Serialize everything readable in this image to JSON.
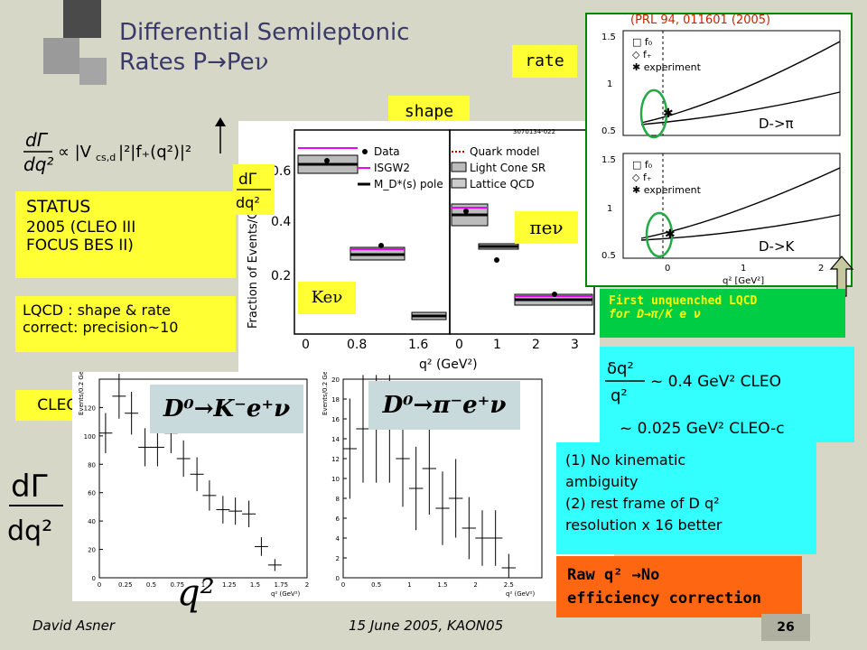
{
  "slide": {
    "title_line1": "Differential Semileptonic",
    "title_line2": "Rates P",
    "title_arrow": "→",
    "title_tail": "Pe",
    "title_nu": "ν",
    "footer_author": "David Asner",
    "footer_date": "15 June 2005, KAON05",
    "page_number": "26"
  },
  "labels": {
    "rate": "rate",
    "shape": "shape",
    "status_title": "STATUS",
    "status_line1": "2005 (CLEO III",
    "status_line2": "FOCUS BES II)",
    "lqcd_line1": "LQCD : shape & rate",
    "lqcd_line2": "correct: precision~10",
    "cleoc": "CLEO-c",
    "pie_nu": "πeν",
    "ke_nu": "Keν",
    "k_channel": "D⁰→K⁻e⁺ν",
    "pi_channel": "D⁰→π⁻e⁺ν",
    "unquenched_line1": "First unquenched LQCD",
    "unquenched_line2": "for D→π/K e ν",
    "prl_ref": "(PRL 94, 011601 (2005)",
    "res_line1": "δq²",
    "res_line1b": "q²",
    "res_val1": "~ 0.4 GeV² CLEO",
    "res_val2": "~ 0.025 GeV²  CLEO-c",
    "adv1_a": "(1) No kinematic",
    "adv1_b": "ambiguity",
    "adv2_a": "(2) rest frame of D q²",
    "adv2_b": "resolution x 16 better",
    "raw_line1": "Raw q² →No",
    "raw_line2": "efficiency correction",
    "formula_rate": "dΓ/dq² ∝ |V_cs,d|² |f₊(q²)|²",
    "dgdq": "dΓ/dq²",
    "q2": "q²"
  },
  "lattice_panel": {
    "legend": [
      "f₀",
      "f₊",
      "experiment"
    ],
    "xlabel": "q² [GeV²]",
    "top_label": "D->π",
    "bottom_label": "D->K",
    "y_ticks_top": [
      "1.5",
      "1",
      "0.5"
    ],
    "y_ticks_bottom": [
      "1.5",
      "1",
      "0.5"
    ],
    "x_ticks": [
      "0",
      "1",
      "2"
    ]
  },
  "shape_panel": {
    "ylabel": "Fraction of Events/GeV²",
    "xlabel": "q² (GeV²)",
    "code": "3070134-022",
    "legend_left": [
      "Data",
      "ISGW2",
      "M_D*(s) pole"
    ],
    "legend_right": [
      "Quark model",
      "Light Cone SR",
      "Lattice QCD"
    ],
    "y_ticks": [
      "0.6",
      "0.4",
      "0.2"
    ],
    "x_ticks_left": [
      "0",
      "0.8",
      "1.6"
    ],
    "x_ticks_right": [
      "0",
      "1",
      "2",
      "3"
    ]
  },
  "chart_data": [
    {
      "type": "scatter",
      "title": "D⁰→K⁻e⁺ν",
      "xlabel": "q² (GeV²)",
      "ylabel": "Events/0.2 GeV²",
      "xlim": [
        0,
        2
      ],
      "ylim": [
        0,
        140
      ],
      "x": [
        0.06,
        0.19,
        0.31,
        0.44,
        0.56,
        0.69,
        0.81,
        0.94,
        1.06,
        1.19,
        1.31,
        1.44,
        1.56,
        1.69
      ],
      "y": [
        102,
        128,
        116,
        92,
        92,
        102,
        84,
        73,
        58,
        48,
        47,
        45,
        22,
        9
      ],
      "x_ticks": [
        "0",
        "0.25",
        "0.5",
        "0.75",
        "1",
        "1.25",
        "1.5",
        "1.75",
        "2"
      ],
      "y_ticks": [
        "0",
        "20",
        "40",
        "60",
        "80",
        "100",
        "120"
      ]
    },
    {
      "type": "scatter",
      "title": "D⁰→π⁻e⁺ν",
      "xlabel": "q² (GeV²)",
      "ylabel": "Events/0.2 GeV²",
      "xlim": [
        0,
        3
      ],
      "ylim": [
        0,
        20
      ],
      "x": [
        0.1,
        0.3,
        0.5,
        0.7,
        0.9,
        1.1,
        1.3,
        1.5,
        1.7,
        1.9,
        2.1,
        2.3,
        2.5
      ],
      "y": [
        13,
        15,
        15,
        15,
        12,
        9,
        11,
        7,
        8,
        5,
        4,
        4,
        1
      ],
      "x_ticks": [
        "0",
        "0.5",
        "1",
        "1.5",
        "2",
        "2.5"
      ],
      "y_ticks": [
        "0",
        "2",
        "4",
        "6",
        "8",
        "10",
        "12",
        "14",
        "16",
        "18",
        "20"
      ]
    }
  ]
}
